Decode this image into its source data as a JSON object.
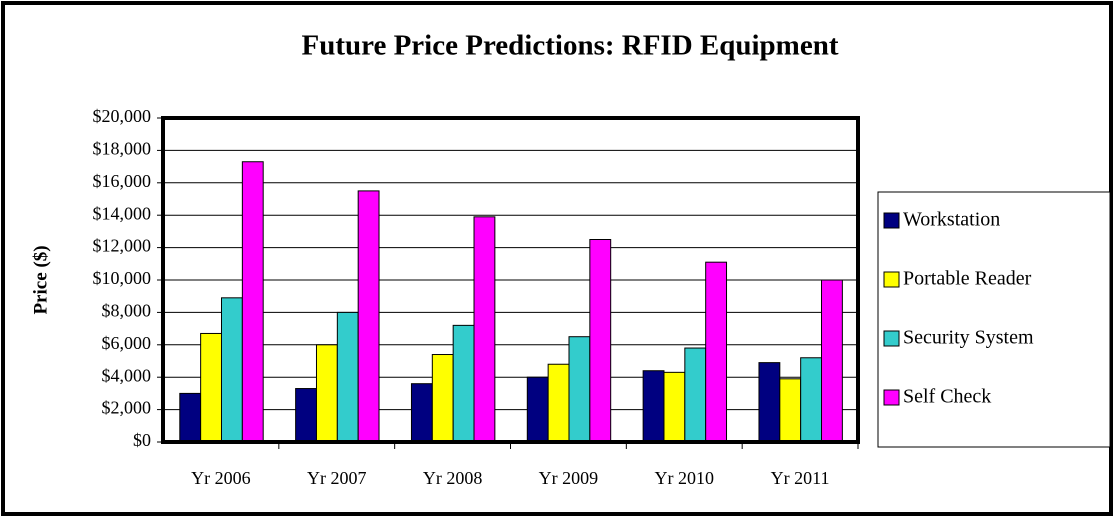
{
  "chart_data": {
    "type": "bar",
    "title": "Future Price Predictions: RFID Equipment",
    "y_label": "Price ($)",
    "categories": [
      "Yr 2006",
      "Yr 2007",
      "Yr 2008",
      "Yr 2009",
      "Yr 2010",
      "Yr 2011"
    ],
    "series": [
      {
        "name": "Workstation",
        "color": "#000080",
        "values": [
          3000,
          3300,
          3600,
          4000,
          4400,
          4900
        ]
      },
      {
        "name": "Portable Reader",
        "color": "#ffff00",
        "values": [
          6700,
          6000,
          5400,
          4800,
          4300,
          3900
        ]
      },
      {
        "name": "Security System",
        "color": "#33cccc",
        "values": [
          8900,
          8000,
          7200,
          6500,
          5800,
          5200
        ]
      },
      {
        "name": "Self Check",
        "color": "#ff00ff",
        "values": [
          17300,
          15500,
          13900,
          12500,
          11100,
          10000
        ]
      }
    ],
    "ylim": [
      0,
      20000
    ],
    "yticks": [
      {
        "value": 0,
        "label": "$0"
      },
      {
        "value": 2000,
        "label": "$2,000"
      },
      {
        "value": 4000,
        "label": "$4,000"
      },
      {
        "value": 6000,
        "label": "$6,000"
      },
      {
        "value": 8000,
        "label": "$8,000"
      },
      {
        "value": 10000,
        "label": "$10,000"
      },
      {
        "value": 12000,
        "label": "$12,000"
      },
      {
        "value": 14000,
        "label": "$14,000"
      },
      {
        "value": 16000,
        "label": "$16,000"
      },
      {
        "value": 18000,
        "label": "$18,000"
      },
      {
        "value": 20000,
        "label": "$20,000"
      }
    ],
    "grid": true,
    "legend": "right"
  }
}
